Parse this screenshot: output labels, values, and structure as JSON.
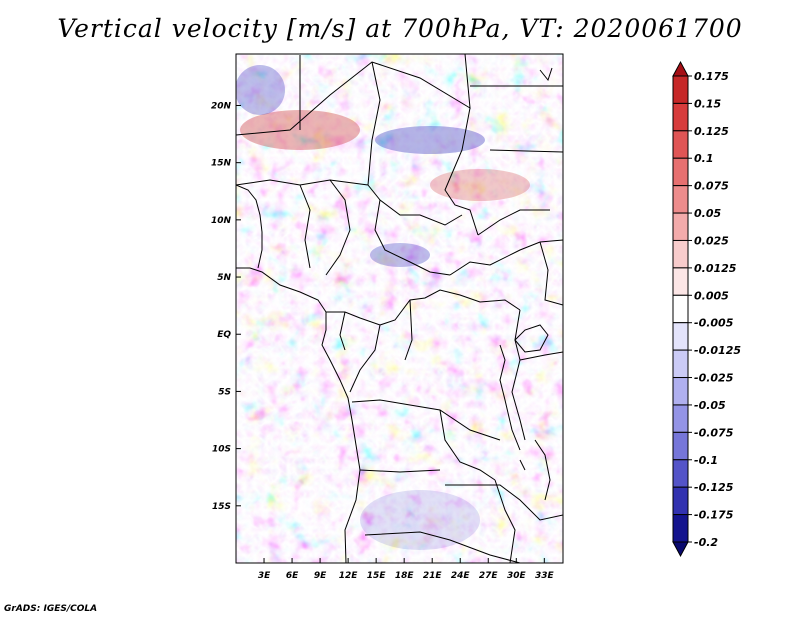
{
  "title": "Vertical velocity [m/s] at 700hPa, VT: 2020061700",
  "credit": "GrADS: IGES/COLA",
  "map": {
    "lon_range": [
      0,
      35
    ],
    "lat_range": [
      -20,
      24.5
    ],
    "x_ticks": [
      "3E",
      "6E",
      "9E",
      "12E",
      "15E",
      "18E",
      "21E",
      "24E",
      "27E",
      "30E",
      "33E"
    ],
    "x_tick_values": [
      3,
      6,
      9,
      12,
      15,
      18,
      21,
      24,
      27,
      30,
      33
    ],
    "y_ticks": [
      "20N",
      "15N",
      "10N",
      "5N",
      "EQ",
      "5S",
      "10S",
      "15S"
    ],
    "y_tick_values": [
      20,
      15,
      10,
      5,
      0,
      -5,
      -10,
      -15
    ]
  },
  "colorbar": {
    "labels": [
      "0.175",
      "0.15",
      "0.125",
      "0.1",
      "0.075",
      "0.05",
      "0.025",
      "0.0125",
      "0.005",
      "-0.005",
      "-0.0125",
      "-0.025",
      "-0.05",
      "-0.075",
      "-0.1",
      "-0.125",
      "-0.175",
      "-0.2"
    ],
    "colors": [
      "#a50f15",
      "#c62828",
      "#d73c3c",
      "#e05555",
      "#e77070",
      "#ed8c8c",
      "#f3abab",
      "#f8cccc",
      "#fce6e6",
      "#ffffff",
      "#e4e4fb",
      "#cbcbf6",
      "#b0b0ef",
      "#9494e6",
      "#7676d9",
      "#5454c8",
      "#3232b0",
      "#14148e",
      "#0a0a6e"
    ]
  },
  "colors": {
    "positive": "#d73c3c",
    "negative": "#3a3ad0",
    "border": "#000000"
  }
}
